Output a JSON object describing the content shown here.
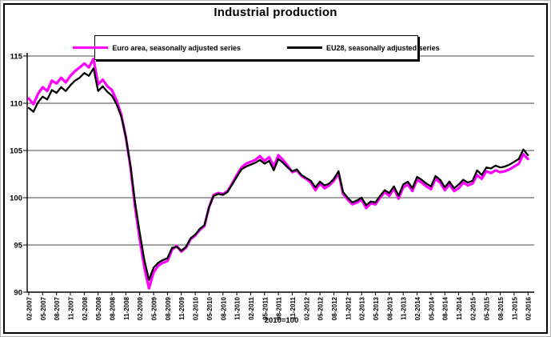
{
  "title": "Industrial production",
  "footnote": "2010=100",
  "legend": [
    {
      "label": "Euro area, seasonally adjusted series",
      "color": "#FF00FF"
    },
    {
      "label": "EU28, seasonally adjusted series",
      "color": "#000000"
    }
  ],
  "chart_data": {
    "type": "line",
    "title": "Industrial production",
    "note": "2010=100",
    "x_unit": "monthly, from 02-2007 to 02-2016",
    "x_tick_step_months": 3,
    "x_tick_labels": [
      "02-2007",
      "05-2007",
      "08-2007",
      "11-2007",
      "02-2008",
      "05-2008",
      "08-2008",
      "11-2008",
      "02-2009",
      "05-2009",
      "08-2009",
      "11-2009",
      "02-2010",
      "05-2010",
      "08-2010",
      "11-2010",
      "02-2011",
      "05-2011",
      "08-2011",
      "11-2011",
      "02-2012",
      "05-2012",
      "08-2012",
      "11-2012",
      "02-2013",
      "05-2013",
      "08-2013",
      "11-2013",
      "02-2014",
      "05-2014",
      "08-2014",
      "11-2014",
      "02-2015",
      "05-2015",
      "08-2015",
      "11-2015",
      "02-2016"
    ],
    "ylim": [
      90,
      115
    ],
    "yticks": [
      90,
      95,
      100,
      105,
      110,
      115
    ],
    "grid": "horizontal",
    "legend_position": "top-center-overlay",
    "series": [
      {
        "name": "Euro area, seasonally adjusted series",
        "color": "#FF00FF",
        "values": [
          110.5,
          109.9,
          111.0,
          111.7,
          111.3,
          112.4,
          112.1,
          112.7,
          112.2,
          112.9,
          113.4,
          113.8,
          114.2,
          113.8,
          114.7,
          112.0,
          112.5,
          111.8,
          111.4,
          110.3,
          108.8,
          106.4,
          103.2,
          99.0,
          95.6,
          92.6,
          90.4,
          92.1,
          92.8,
          93.1,
          93.3,
          94.5,
          94.9,
          94.3,
          94.7,
          95.6,
          96.0,
          96.6,
          97.0,
          99.0,
          100.3,
          100.5,
          100.4,
          100.7,
          101.5,
          102.4,
          103.2,
          103.6,
          103.8,
          104.0,
          104.4,
          103.9,
          104.3,
          103.3,
          104.5,
          104.0,
          103.4,
          102.7,
          102.9,
          102.3,
          102.0,
          101.6,
          100.8,
          101.5,
          101.0,
          101.3,
          101.8,
          102.6,
          100.4,
          99.8,
          99.3,
          99.5,
          99.8,
          98.9,
          99.4,
          99.3,
          100.0,
          100.6,
          100.2,
          101.0,
          99.9,
          101.1,
          101.4,
          100.7,
          101.9,
          101.6,
          101.2,
          100.9,
          102.0,
          101.6,
          100.8,
          101.4,
          100.7,
          101.0,
          101.6,
          101.3,
          101.5,
          102.4,
          102.0,
          102.8,
          102.6,
          102.9,
          102.7,
          102.8,
          103.0,
          103.3,
          103.6,
          104.6,
          104.1
        ]
      },
      {
        "name": "EU28, seasonally adjusted series",
        "color": "#000000",
        "values": [
          109.5,
          109.1,
          110.1,
          110.7,
          110.4,
          111.4,
          111.1,
          111.7,
          111.3,
          111.9,
          112.4,
          112.7,
          113.2,
          112.9,
          113.7,
          111.3,
          111.8,
          111.2,
          110.8,
          109.9,
          108.6,
          106.4,
          103.4,
          99.5,
          96.3,
          93.4,
          91.3,
          92.6,
          93.1,
          93.4,
          93.6,
          94.7,
          94.8,
          94.4,
          94.8,
          95.7,
          96.1,
          96.7,
          97.1,
          99.0,
          100.2,
          100.4,
          100.3,
          100.6,
          101.4,
          102.2,
          103.0,
          103.3,
          103.5,
          103.7,
          104.0,
          103.6,
          103.9,
          102.9,
          104.1,
          103.7,
          103.2,
          102.8,
          103.0,
          102.4,
          102.1,
          101.8,
          101.1,
          101.7,
          101.3,
          101.5,
          102.0,
          102.8,
          100.6,
          100.0,
          99.5,
          99.7,
          100.0,
          99.2,
          99.6,
          99.5,
          100.2,
          100.8,
          100.5,
          101.2,
          100.2,
          101.4,
          101.7,
          101.0,
          102.2,
          101.9,
          101.5,
          101.2,
          102.3,
          101.9,
          101.1,
          101.7,
          101.0,
          101.4,
          101.9,
          101.6,
          101.8,
          102.9,
          102.4,
          103.2,
          103.1,
          103.4,
          103.2,
          103.3,
          103.5,
          103.8,
          104.1,
          105.1,
          104.5
        ]
      }
    ]
  }
}
